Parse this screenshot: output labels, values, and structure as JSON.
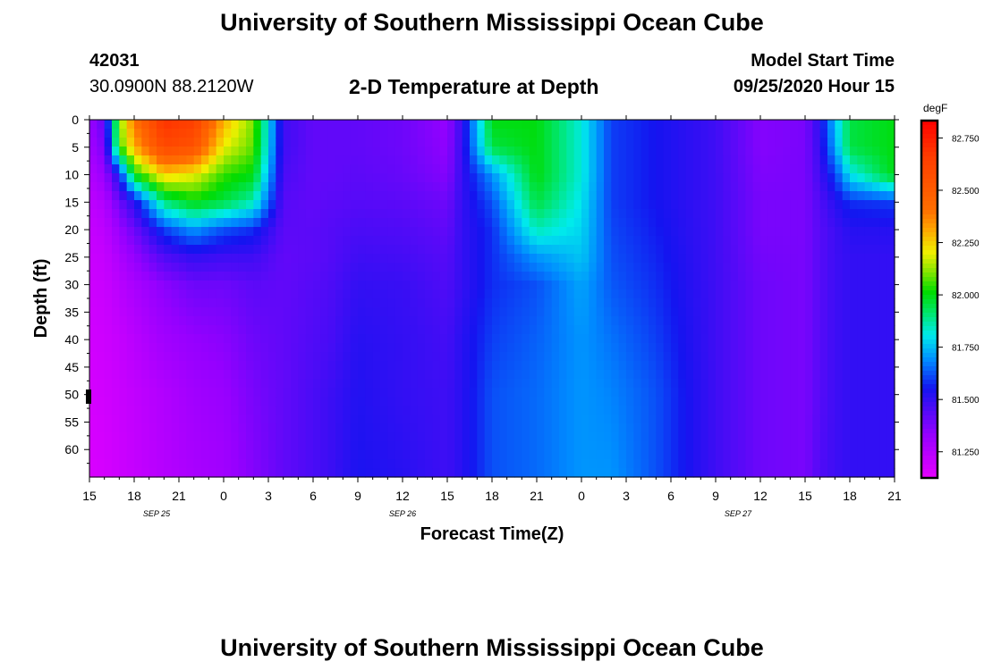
{
  "header": {
    "title": "University of Southern Mississippi Ocean Cube",
    "station_id": "42031",
    "station_location": "30.0900N 88.2120W",
    "plot_title": "2-D Temperature at Depth",
    "model_start_label": "Model Start Time",
    "model_start_value": "09/25/2020 Hour 15"
  },
  "footer": {
    "title": "University of Southern Mississippi Ocean Cube"
  },
  "chart_data": {
    "type": "heatmap",
    "title": "2-D Temperature at Depth",
    "xlabel": "Forecast Time(Z)",
    "ylabel": "Depth (ft)",
    "xlim_hours": [
      0,
      54
    ],
    "ylim_ft": [
      65,
      0
    ],
    "x_ticks": [
      {
        "h": 0,
        "label": "15"
      },
      {
        "h": 3,
        "label": "18"
      },
      {
        "h": 6,
        "label": "21"
      },
      {
        "h": 9,
        "label": "0"
      },
      {
        "h": 12,
        "label": "3"
      },
      {
        "h": 15,
        "label": "6"
      },
      {
        "h": 18,
        "label": "9"
      },
      {
        "h": 21,
        "label": "12"
      },
      {
        "h": 24,
        "label": "15"
      },
      {
        "h": 27,
        "label": "18"
      },
      {
        "h": 30,
        "label": "21"
      },
      {
        "h": 33,
        "label": "0"
      },
      {
        "h": 36,
        "label": "3"
      },
      {
        "h": 39,
        "label": "6"
      },
      {
        "h": 42,
        "label": "9"
      },
      {
        "h": 45,
        "label": "12"
      },
      {
        "h": 48,
        "label": "15"
      },
      {
        "h": 51,
        "label": "18"
      },
      {
        "h": 54,
        "label": "21"
      }
    ],
    "date_labels": [
      {
        "h": 4.5,
        "label": "SEP 25"
      },
      {
        "h": 21,
        "label": "SEP 26"
      },
      {
        "h": 43.5,
        "label": "SEP 27"
      }
    ],
    "y_ticks": [
      0,
      5,
      10,
      15,
      20,
      25,
      30,
      35,
      40,
      45,
      50,
      55,
      60
    ],
    "colorbar": {
      "unit": "degF",
      "min": 81.125,
      "max": 82.833,
      "ticks": [
        "82.750",
        "82.500",
        "82.250",
        "82.000",
        "81.750",
        "81.500",
        "81.250"
      ],
      "tick_values": [
        82.75,
        82.5,
        82.25,
        82.0,
        81.75,
        81.5,
        81.25
      ]
    },
    "temperature_field": {
      "hours": [
        0,
        1,
        2,
        3,
        5,
        7,
        9,
        11,
        13,
        15,
        16,
        18,
        21,
        24,
        25,
        27,
        30,
        33,
        35,
        38,
        42,
        45,
        48,
        49,
        50,
        51,
        54
      ],
      "depths_ft": [
        0,
        5,
        10,
        15,
        20,
        25,
        30,
        40,
        50,
        65
      ],
      "values_degF": [
        [
          81.32,
          81.3,
          81.26,
          81.23,
          81.21,
          81.2,
          81.19,
          81.18,
          81.17,
          81.16
        ],
        [
          81.42,
          81.38,
          81.32,
          81.26,
          81.23,
          81.21,
          81.2,
          81.19,
          81.18,
          81.17
        ],
        [
          82.1,
          82.05,
          81.55,
          81.4,
          81.32,
          81.27,
          81.24,
          81.21,
          81.2,
          81.19
        ],
        [
          82.4,
          82.3,
          82.0,
          81.52,
          81.4,
          81.33,
          81.28,
          81.24,
          81.22,
          81.21
        ],
        [
          82.7,
          82.6,
          82.25,
          81.9,
          81.6,
          81.45,
          81.35,
          81.3,
          81.26,
          81.25
        ],
        [
          82.65,
          82.55,
          82.2,
          82.0,
          81.7,
          81.5,
          81.4,
          81.33,
          81.3,
          81.28
        ],
        [
          82.3,
          82.2,
          82.05,
          81.95,
          81.62,
          81.48,
          81.4,
          81.35,
          81.32,
          81.3
        ],
        [
          82.1,
          82.08,
          82.0,
          81.85,
          81.58,
          81.48,
          81.43,
          81.4,
          81.38,
          81.36
        ],
        [
          81.48,
          81.48,
          81.46,
          81.44,
          81.43,
          81.42,
          81.42,
          81.42,
          81.42,
          81.42
        ],
        [
          81.42,
          81.42,
          81.42,
          81.42,
          81.43,
          81.43,
          81.44,
          81.45,
          81.46,
          81.46
        ],
        [
          81.42,
          81.42,
          81.42,
          81.43,
          81.44,
          81.44,
          81.45,
          81.46,
          81.48,
          81.48
        ],
        [
          81.42,
          81.42,
          81.43,
          81.44,
          81.46,
          81.48,
          81.5,
          81.52,
          81.53,
          81.54
        ],
        [
          81.4,
          81.4,
          81.41,
          81.43,
          81.45,
          81.47,
          81.49,
          81.5,
          81.5,
          81.52
        ],
        [
          81.33,
          81.34,
          81.36,
          81.4,
          81.42,
          81.44,
          81.45,
          81.47,
          81.48,
          81.48
        ],
        [
          81.5,
          81.5,
          81.5,
          81.5,
          81.5,
          81.5,
          81.5,
          81.52,
          81.52,
          81.52
        ],
        [
          82.0,
          81.95,
          81.7,
          81.62,
          81.58,
          81.58,
          81.58,
          81.6,
          81.62,
          81.62
        ],
        [
          82.0,
          82.0,
          82.0,
          81.95,
          81.85,
          81.7,
          81.62,
          81.64,
          81.65,
          81.65
        ],
        [
          81.82,
          81.82,
          81.82,
          81.8,
          81.78,
          81.76,
          81.72,
          81.7,
          81.7,
          81.7
        ],
        [
          81.6,
          81.6,
          81.6,
          81.6,
          81.61,
          81.62,
          81.63,
          81.66,
          81.68,
          81.7
        ],
        [
          81.55,
          81.55,
          81.55,
          81.55,
          81.56,
          81.57,
          81.58,
          81.6,
          81.62,
          81.62
        ],
        [
          81.48,
          81.48,
          81.48,
          81.48,
          81.48,
          81.48,
          81.48,
          81.48,
          81.48,
          81.48
        ],
        [
          81.36,
          81.36,
          81.37,
          81.38,
          81.38,
          81.39,
          81.4,
          81.4,
          81.4,
          81.4
        ],
        [
          81.38,
          81.38,
          81.38,
          81.38,
          81.38,
          81.38,
          81.38,
          81.38,
          81.38,
          81.38
        ],
        [
          81.52,
          81.5,
          81.48,
          81.45,
          81.44,
          81.44,
          81.44,
          81.44,
          81.44,
          81.45
        ],
        [
          81.75,
          81.72,
          81.6,
          81.52,
          81.48,
          81.48,
          81.48,
          81.48,
          81.48,
          81.48
        ],
        [
          81.95,
          81.95,
          81.8,
          81.58,
          81.52,
          81.5,
          81.5,
          81.5,
          81.5,
          81.5
        ],
        [
          82.0,
          82.0,
          82.0,
          81.6,
          81.52,
          81.5,
          81.5,
          81.5,
          81.5,
          81.5
        ]
      ]
    }
  }
}
